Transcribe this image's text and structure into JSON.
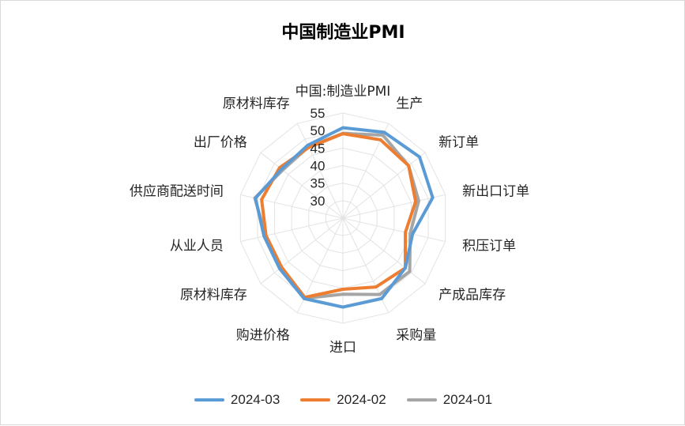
{
  "chart_data": {
    "type": "radar",
    "title": "中国制造业PMI",
    "axes": [
      "中国:制造业PMI",
      "生产",
      "新订单",
      "新出口订单",
      "积压订单",
      "产成品库存",
      "采购量",
      "进口",
      "购进价格",
      "原材料库存",
      "从业人员",
      "供应商配送时间",
      "出厂价格",
      "原材料库存"
    ],
    "r_ticks": [
      30,
      35,
      40,
      45,
      50,
      55
    ],
    "r_range": [
      25,
      55
    ],
    "series": [
      {
        "name": "2024-03",
        "color": "#5b9bd5",
        "values": [
          50.8,
          52.2,
          53.0,
          51.3,
          45.4,
          47.8,
          50.5,
          50.4,
          50.5,
          48.1,
          48.1,
          50.6,
          47.4,
          48.1
        ]
      },
      {
        "name": "2024-02",
        "color": "#ed7d31",
        "values": [
          49.1,
          49.8,
          49.0,
          46.3,
          43.3,
          47.8,
          46.8,
          45.3,
          50.1,
          47.4,
          47.5,
          48.8,
          48.1,
          47.4
        ]
      },
      {
        "name": "2024-01",
        "color": "#a5a5a5",
        "values": [
          49.2,
          51.3,
          49.0,
          47.2,
          44.7,
          49.4,
          49.2,
          46.7,
          50.4,
          47.6,
          47.6,
          50.8,
          47.0,
          47.6
        ]
      }
    ],
    "grid": true,
    "legend_position": "bottom"
  }
}
